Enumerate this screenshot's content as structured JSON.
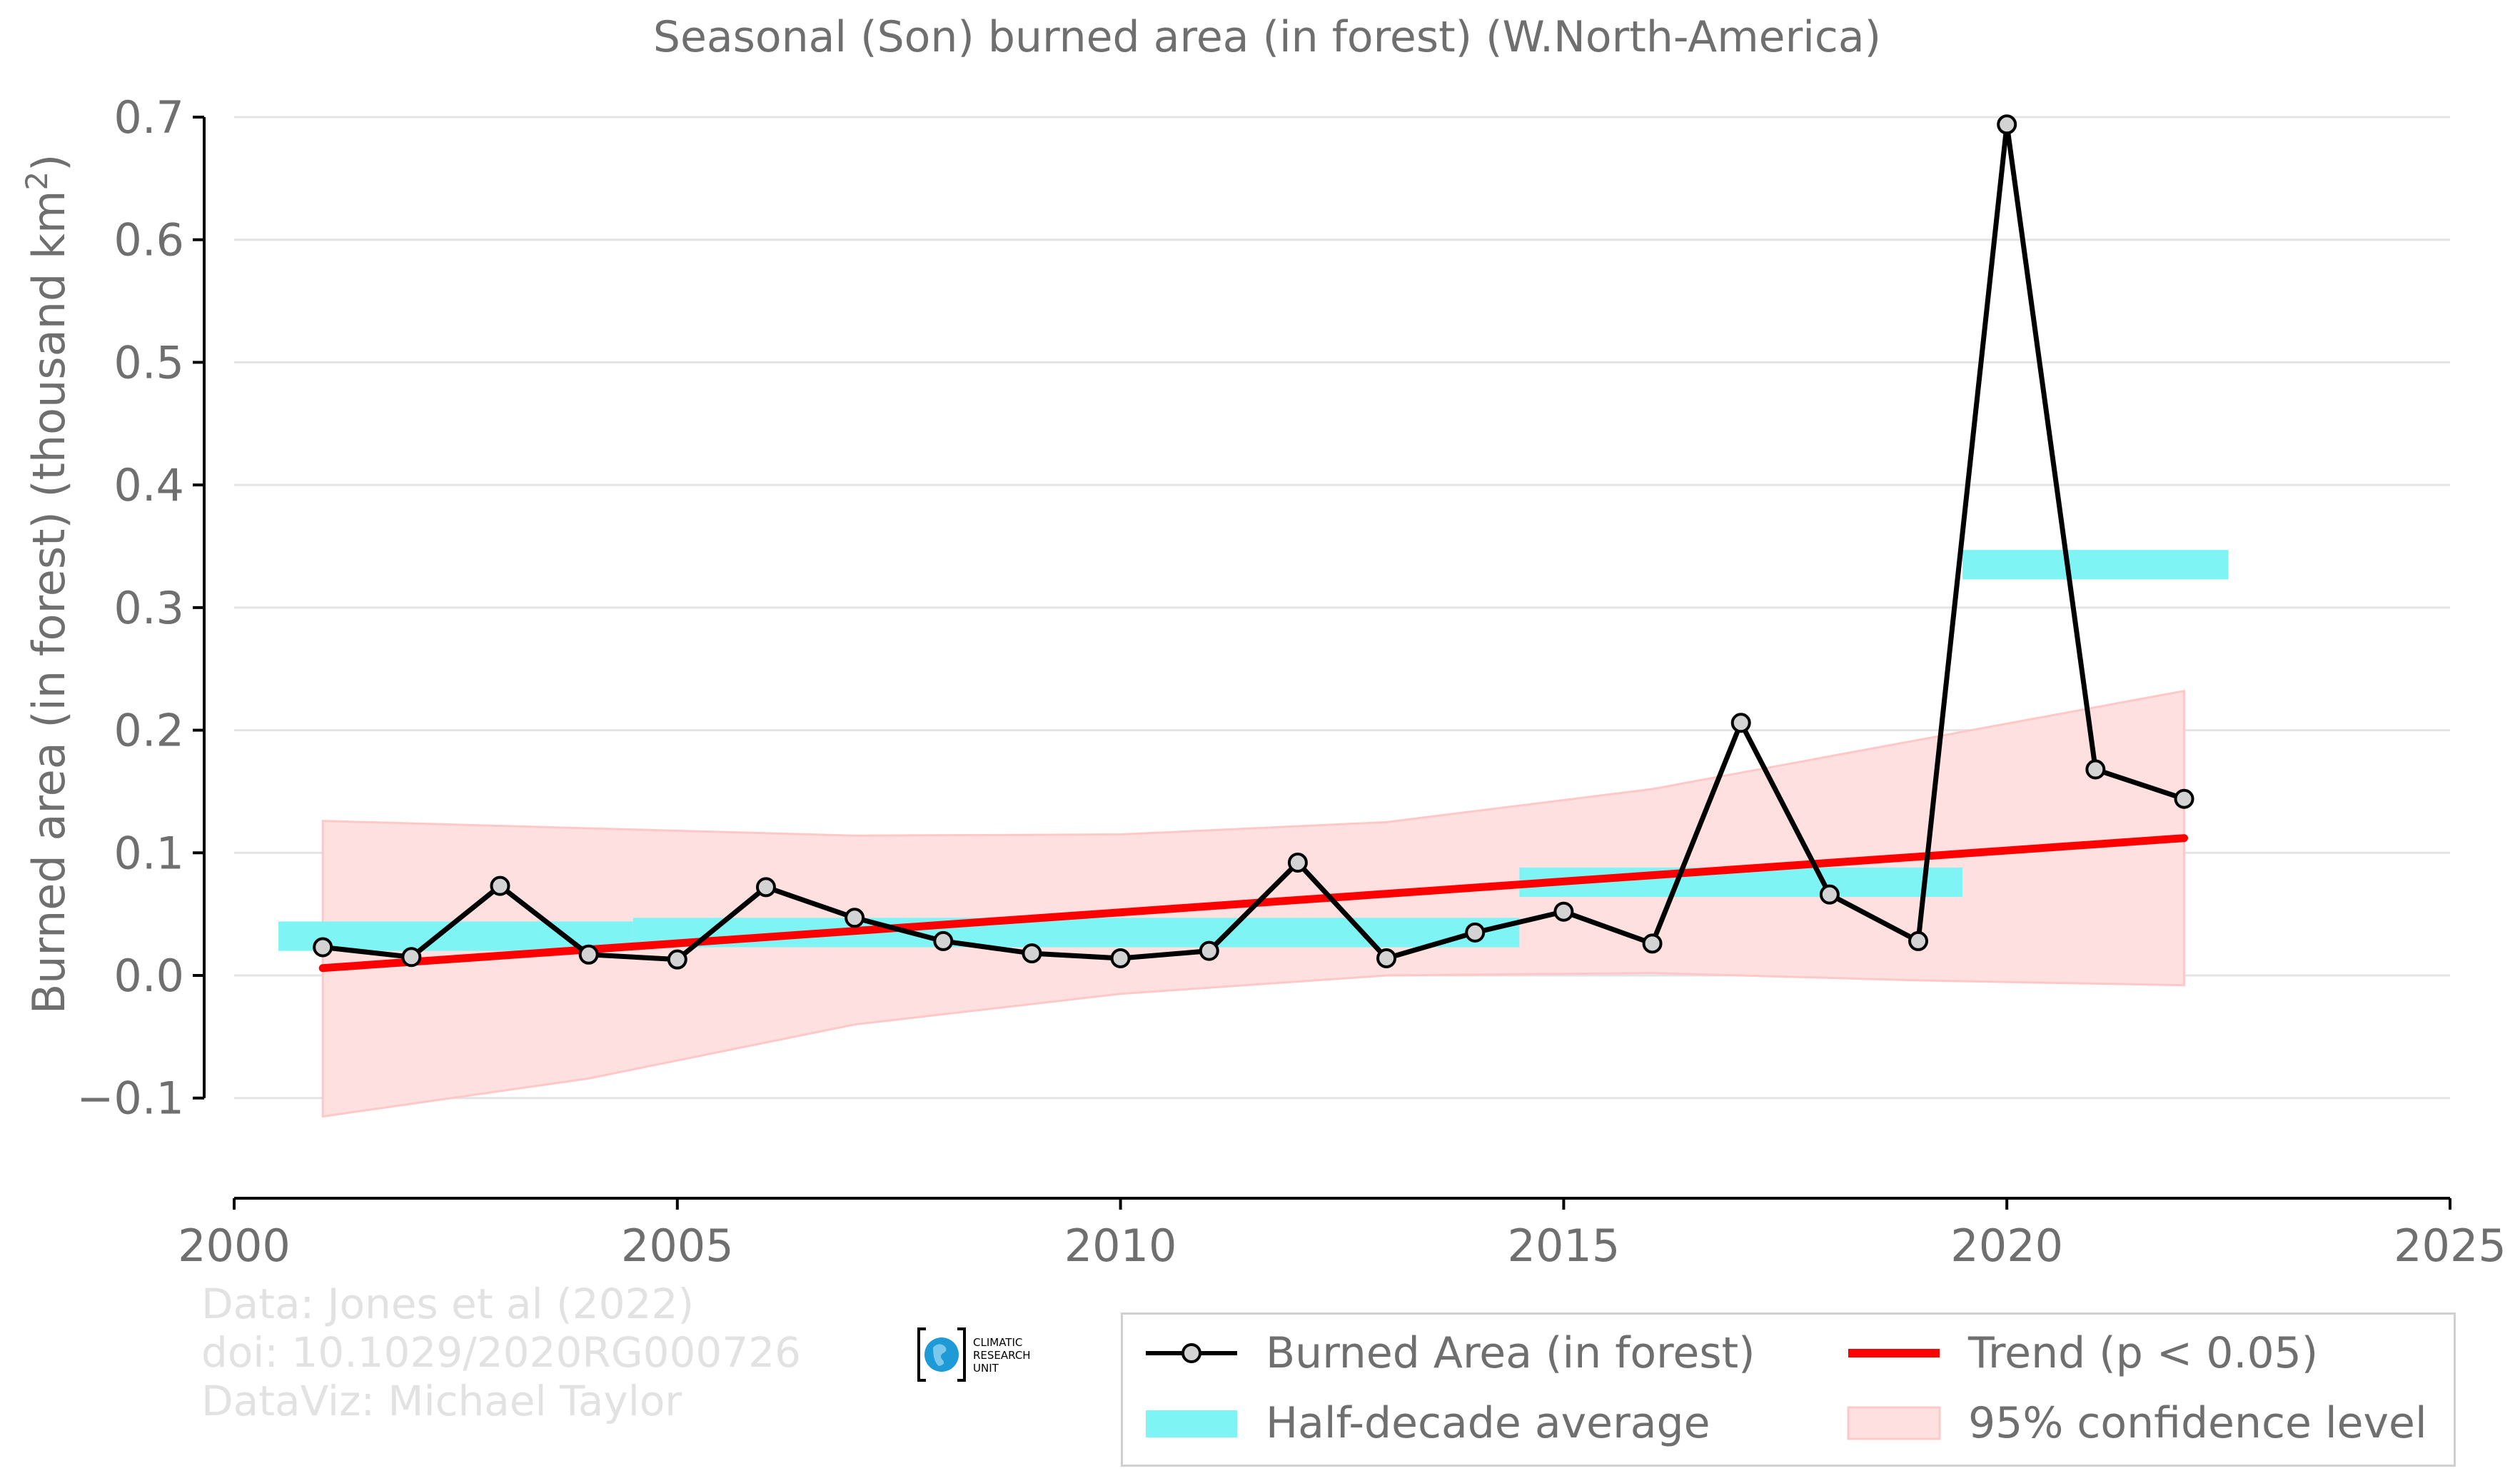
{
  "chart_data": {
    "type": "line",
    "title": "Seasonal (Son) burned area (in forest) (W.North-America)",
    "xlabel": "",
    "ylabel_main": "Burned area (in forest) (thousand km",
    "ylabel_sup": "2",
    "ylabel_close": ")",
    "xlim": [
      2000,
      2025
    ],
    "ylim": [
      -0.18,
      0.7
    ],
    "x_ticks": [
      2000,
      2005,
      2010,
      2015,
      2020,
      2025
    ],
    "y_ticks": [
      -0.1,
      0.0,
      0.1,
      0.2,
      0.3,
      0.4,
      0.5,
      0.6,
      0.7
    ],
    "y_tick_labels": [
      "−0.1",
      "0.0",
      "0.1",
      "0.2",
      "0.3",
      "0.4",
      "0.5",
      "0.6",
      "0.7"
    ],
    "grid": "horizontal",
    "legend_position": "bottom-right",
    "series": [
      {
        "name": "Burned Area (in forest)",
        "kind": "line-markers",
        "color": "#000000",
        "marker_fill": "#d3d3d3",
        "x": [
          2001,
          2002,
          2003,
          2004,
          2005,
          2006,
          2007,
          2008,
          2009,
          2010,
          2011,
          2012,
          2013,
          2014,
          2015,
          2016,
          2017,
          2018,
          2019,
          2020,
          2021,
          2022
        ],
        "y": [
          0.023,
          0.015,
          0.073,
          0.017,
          0.013,
          0.072,
          0.047,
          0.028,
          0.018,
          0.014,
          0.02,
          0.092,
          0.014,
          0.035,
          0.052,
          0.026,
          0.206,
          0.066,
          0.028,
          0.694,
          0.168,
          0.144
        ]
      },
      {
        "name": "Trend (p < 0.05)",
        "kind": "trend",
        "color": "#ff0000",
        "x": [
          2001,
          2022
        ],
        "y": [
          0.006,
          0.112
        ]
      },
      {
        "name": "Half-decade average",
        "kind": "bars",
        "color": "#7ef4f4",
        "bars": [
          {
            "x0": 2000.5,
            "x1": 2004.5,
            "y0": 0.02,
            "y1": 0.044
          },
          {
            "x0": 2004.5,
            "x1": 2014.5,
            "y0": 0.023,
            "y1": 0.047
          },
          {
            "x0": 2014.5,
            "x1": 2019.5,
            "y0": 0.064,
            "y1": 0.088
          },
          {
            "x0": 2019.5,
            "x1": 2022.5,
            "y0": 0.323,
            "y1": 0.347
          }
        ]
      },
      {
        "name": "95% confidence level",
        "kind": "band",
        "color": "#ffe0e0",
        "edge_color": "#ffc8c8",
        "x": [
          2001,
          2004,
          2007,
          2010,
          2013,
          2016,
          2019,
          2022
        ],
        "upper": [
          0.126,
          0.12,
          0.114,
          0.115,
          0.125,
          0.152,
          0.192,
          0.232
        ],
        "lower": [
          -0.115,
          -0.084,
          -0.04,
          -0.015,
          0.0,
          0.002,
          -0.004,
          -0.008
        ]
      }
    ]
  },
  "credits": {
    "line1": "Data: Jones et al (2022)",
    "line2": "doi: 10.1029/2020RG000726",
    "line3": "DataViz: Michael Taylor"
  },
  "logo": {
    "line1": "CLIMATIC",
    "line2": "RESEARCH",
    "line3": "UNIT",
    "globe_color": "#1e9ad6"
  },
  "colors": {
    "axis_text": "#6f6f6f",
    "grid": "#e3e3e3",
    "axis_line": "#000000"
  }
}
